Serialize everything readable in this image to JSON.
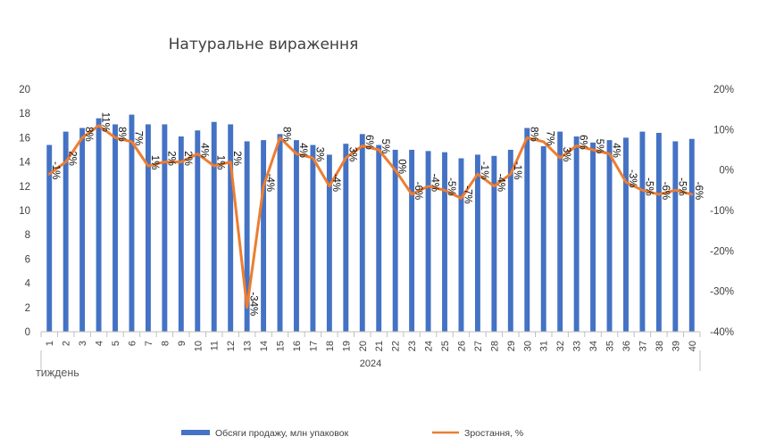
{
  "chart_data": {
    "type": "bar",
    "title": "Натуральне вираження",
    "x": [
      "1",
      "2",
      "3",
      "4",
      "5",
      "6",
      "7",
      "8",
      "9",
      "10",
      "11",
      "12",
      "13",
      "14",
      "15",
      "16",
      "17",
      "18",
      "19",
      "20",
      "21",
      "22",
      "23",
      "24",
      "25",
      "26",
      "27",
      "28",
      "29",
      "30",
      "31",
      "32",
      "33",
      "34",
      "35",
      "36",
      "37",
      "38",
      "39",
      "40"
    ],
    "group_label": "2024",
    "xlabel": "тиждень",
    "y_ticks": [
      "0",
      "2",
      "4",
      "6",
      "8",
      "10",
      "12",
      "14",
      "16",
      "18",
      "20"
    ],
    "y2_ticks": [
      "-40%",
      "-30%",
      "-20%",
      "-10%",
      "0%",
      "10%",
      "20%"
    ],
    "ylim": [
      0,
      20
    ],
    "y2lim": [
      -40,
      20
    ],
    "grid": false,
    "legend_position": "bottom",
    "series": [
      {
        "name": "Обсяги продажу, млн упаковок",
        "kind": "bar",
        "axis": "left",
        "color": "#4472C4",
        "values": [
          15.4,
          16.5,
          16.8,
          17.6,
          17.1,
          17.9,
          17.1,
          17.1,
          16.1,
          16.6,
          17.3,
          17.1,
          15.7,
          15.8,
          16.3,
          15.8,
          15.4,
          14.6,
          15.5,
          16.3,
          15.4,
          15.0,
          15.0,
          14.9,
          14.8,
          14.3,
          14.6,
          14.5,
          15.0,
          16.8,
          15.3,
          16.5,
          16.1,
          15.6,
          15.8,
          16.0,
          16.5,
          16.4,
          15.7,
          15.9
        ]
      },
      {
        "name": "Зростання, %",
        "kind": "line",
        "axis": "right",
        "color": "#ED7D31",
        "values": [
          -1,
          2,
          8,
          11,
          8,
          7,
          1,
          2,
          2,
          4,
          1,
          2,
          -34,
          -4,
          8,
          4,
          3,
          -4,
          3,
          6,
          5,
          0,
          -6,
          -4,
          -5,
          -7,
          -1,
          -4,
          -1,
          8,
          7,
          3,
          6,
          5,
          4,
          -3,
          -5,
          -6,
          -5,
          -6
        ],
        "labels": [
          "-1%",
          "2%",
          "8%",
          "11%",
          "8%",
          "7%",
          "1%",
          "2%",
          "2%",
          "4%",
          "1%",
          "2%",
          "-34%",
          "-4%",
          "8%",
          "4%",
          "3%",
          "-4%",
          "3%",
          "6%",
          "5%",
          "0%",
          "-6%",
          "-4%",
          "-5%",
          "-7%",
          "-1%",
          "-4%",
          "-1%",
          "8%",
          "7%",
          "3%",
          "6%",
          "5%",
          "4%",
          "-3%",
          "-5%",
          "-6%",
          "-5%",
          "-6%"
        ]
      }
    ]
  }
}
